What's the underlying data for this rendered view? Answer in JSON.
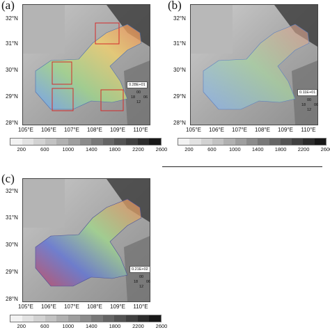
{
  "panels": [
    {
      "letter": "(a)",
      "lat_labels": [
        "32°N",
        "31°N",
        "30°N",
        "29°N",
        "28°N"
      ],
      "lon_labels": [
        "105°E",
        "106°E",
        "107°E",
        "108°E",
        "109°E",
        "110°E"
      ],
      "ref_vector": "0.28E+01",
      "clock": {
        "top": "00",
        "left": "18",
        "right": "06",
        "bottom": "12"
      },
      "has_red_boxes": true
    },
    {
      "letter": "(b)",
      "lat_labels": [
        "32°N",
        "31°N",
        "30°N",
        "29°N",
        "28°N"
      ],
      "lon_labels": [
        "105°E",
        "106°E",
        "107°E",
        "108°E",
        "109°E",
        "110°E"
      ],
      "ref_vector": "0.11E+01",
      "clock": {
        "top": "00",
        "left": "18",
        "right": "06",
        "bottom": "12"
      },
      "has_red_boxes": false
    },
    {
      "letter": "(c)",
      "lat_labels": [
        "32°N",
        "31°N",
        "30°N",
        "29°N",
        "28°N"
      ],
      "lon_labels": [
        "105°E",
        "106°E",
        "107°E",
        "108°E",
        "109°E",
        "110°E"
      ],
      "ref_vector": "0.21E+02",
      "clock": {
        "top": "00",
        "left": "18",
        "right": "06",
        "bottom": "12"
      },
      "has_red_boxes": false
    }
  ],
  "colorbar": {
    "labels": [
      "200",
      "600",
      "1000",
      "1400",
      "1800",
      "2200",
      "2600"
    ],
    "colors": [
      "#f2f2f2",
      "#e2e2e2",
      "#d2d2d2",
      "#c2c2c2",
      "#b0b0b0",
      "#9e9e9e",
      "#8b8b8b",
      "#787878",
      "#656565",
      "#535353",
      "#404040",
      "#2c2c2c",
      "#181818"
    ]
  },
  "colors": {
    "frame": "#444444",
    "highlight_box": "#d42a2a",
    "terrain_light": "#d8d8d8",
    "terrain_dark": "#3a3a3a"
  }
}
